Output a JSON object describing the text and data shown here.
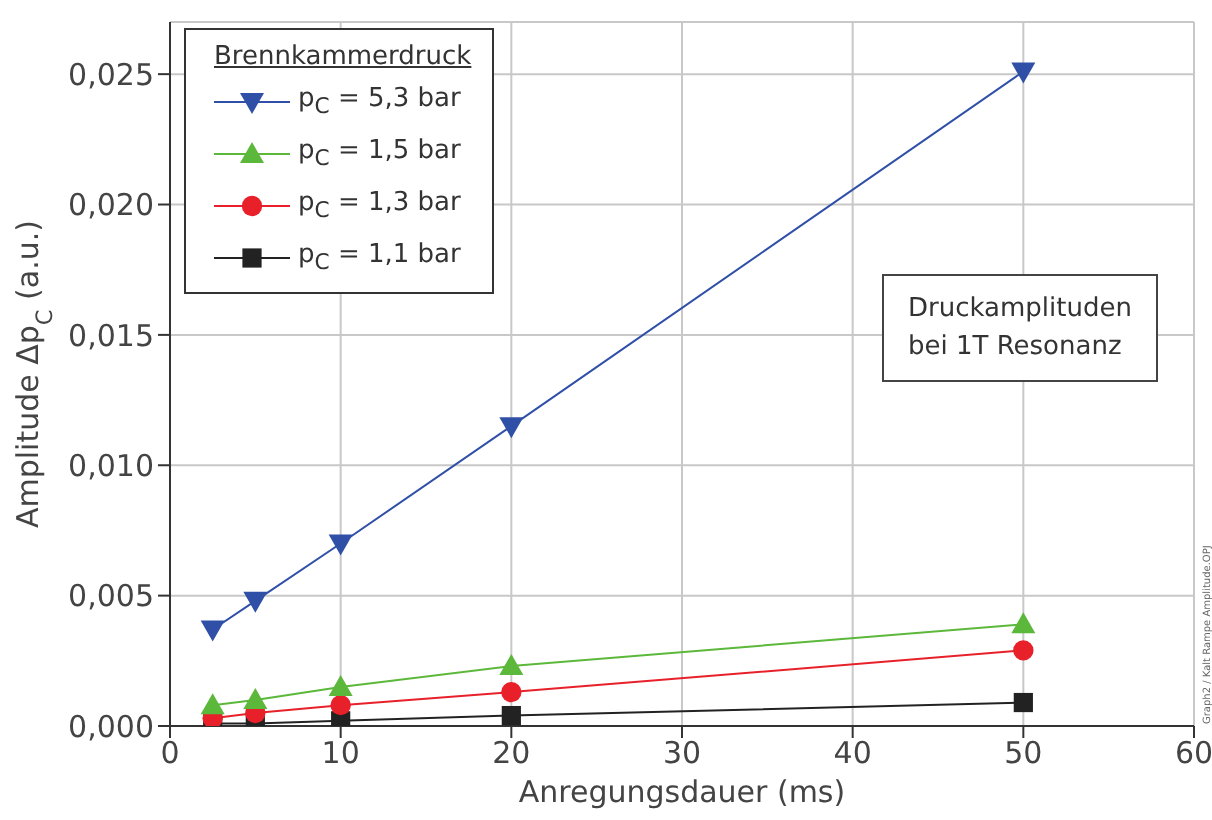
{
  "chart_data": {
    "type": "line",
    "xlabel": "Anregungsdauer (ms)",
    "ylabel": "Amplitude  Δp$_{C}$  (a.u.)",
    "legend_title": "Brennkammerdruck",
    "legend": "top left",
    "grid": true,
    "x": [
      2.5,
      5,
      10,
      20,
      50
    ],
    "xlim": [
      0,
      60
    ],
    "xticks": [
      0,
      10,
      20,
      30,
      40,
      50,
      60
    ],
    "ylim": [
      0,
      0.027
    ],
    "yticks": [
      {
        "value": 0,
        "label": "0,000"
      },
      {
        "value": 0.005,
        "label": "0,005"
      },
      {
        "value": 0.01,
        "label": "0,010"
      },
      {
        "value": 0.015,
        "label": "0,015"
      },
      {
        "value": 0.02,
        "label": "0,020"
      },
      {
        "value": 0.025,
        "label": "0,025"
      }
    ],
    "series": [
      {
        "name": "p$_{C}$ = 5,3 bar",
        "color": "#3050a8",
        "marker": "triangle-down",
        "values": [
          0.0037,
          0.0048,
          0.007,
          0.0115,
          0.0251
        ]
      },
      {
        "name": "p$_{C}$ = 1,5 bar",
        "color": "#5cb83a",
        "marker": "triangle",
        "values": [
          0.0008,
          0.001,
          0.0015,
          0.0023,
          0.0039
        ]
      },
      {
        "name": "p$_{C}$ = 1,3 bar",
        "color": "#e8202a",
        "marker": "circle",
        "values": [
          0.0003,
          0.0005,
          0.0008,
          0.0013,
          0.0029
        ]
      },
      {
        "name": "p$_{C}$ = 1,1 bar",
        "color": "#222222",
        "marker": "square",
        "values": [
          0.0001,
          0.0001,
          0.0002,
          0.0004,
          0.0009
        ]
      }
    ],
    "annotations": [
      "Druckamplituden\nbei 1T Resonanz",
      "Graph2 / Kalt Rampe Amplitude.OPJ"
    ]
  }
}
